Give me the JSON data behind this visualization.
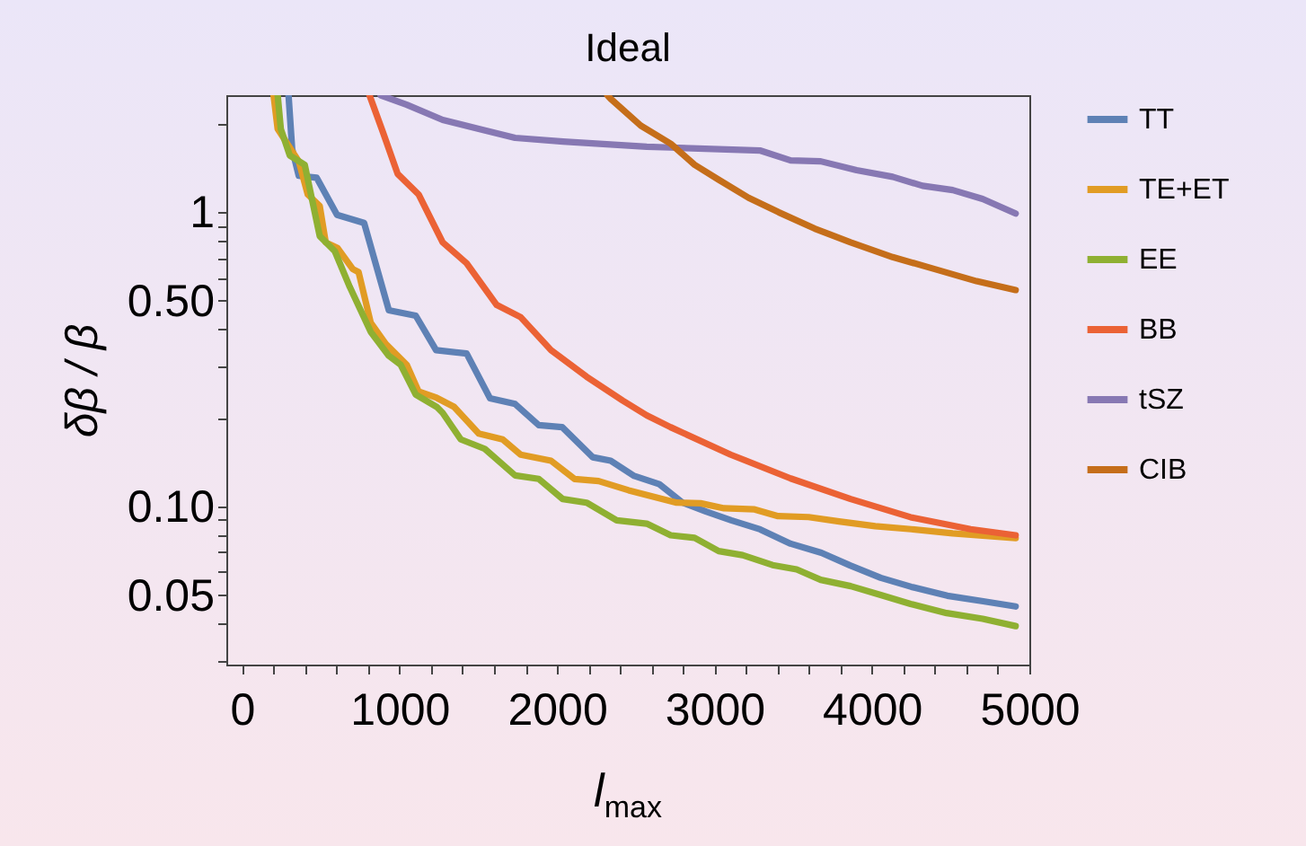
{
  "chart_data": {
    "type": "line",
    "title": "Ideal",
    "xlabel": "l$_{max}$",
    "ylabel": "δβ / β",
    "log": "y",
    "legend": "right",
    "line_style": "solid",
    "xlim": [
      -100,
      5000
    ],
    "ylim": [
      0.029,
      2.5
    ],
    "xticks": [
      0,
      {
        "value": 200,
        "label": null
      },
      {
        "value": 400,
        "label": null
      },
      {
        "value": 600,
        "label": null
      },
      {
        "value": 800,
        "label": null
      },
      1000,
      {
        "value": 1200,
        "label": null
      },
      {
        "value": 1400,
        "label": null
      },
      {
        "value": 1600,
        "label": null
      },
      {
        "value": 1800,
        "label": null
      },
      2000,
      {
        "value": 2200,
        "label": null
      },
      {
        "value": 2400,
        "label": null
      },
      {
        "value": 2600,
        "label": null
      },
      {
        "value": 2800,
        "label": null
      },
      3000,
      {
        "value": 3200,
        "label": null
      },
      {
        "value": 3400,
        "label": null
      },
      {
        "value": 3600,
        "label": null
      },
      {
        "value": 3800,
        "label": null
      },
      4000,
      {
        "value": 4200,
        "label": null
      },
      {
        "value": 4400,
        "label": null
      },
      {
        "value": 4600,
        "label": null
      },
      {
        "value": 4800,
        "label": null
      },
      5000
    ],
    "yticks": [
      {
        "value": 0.03,
        "label": null
      },
      {
        "value": 0.04,
        "label": null
      },
      0.05,
      {
        "value": 0.06,
        "label": null
      },
      {
        "value": 0.07,
        "label": null
      },
      {
        "value": 0.08,
        "label": null
      },
      {
        "value": 0.09,
        "label": null
      },
      {
        "value": 0.1,
        "label": "0.10"
      },
      {
        "value": 0.2,
        "label": null
      },
      {
        "value": 0.3,
        "label": null
      },
      {
        "value": 0.4,
        "label": null
      },
      {
        "value": 0.5,
        "label": "0.50"
      },
      {
        "value": 0.6,
        "label": null
      },
      {
        "value": 0.7,
        "label": null
      },
      {
        "value": 0.8,
        "label": null
      },
      {
        "value": 0.9,
        "label": null
      },
      1,
      {
        "value": 2,
        "label": null
      }
    ],
    "series": [
      {
        "name": "TT",
        "color": "#5e81b5",
        "x": [
          295,
          318,
          360,
          474,
          603,
          775,
          932,
          1103,
          1232,
          1426,
          1575,
          1734,
          1884,
          2033,
          2227,
          2341,
          2490,
          2650,
          2798,
          2947,
          3107,
          3290,
          3484,
          3679,
          3862,
          4056,
          4250,
          4479,
          4707,
          4913
        ],
        "values": [
          2.5,
          1.64,
          1.33,
          1.31,
          0.98,
          0.92,
          0.464,
          0.445,
          0.34,
          0.331,
          0.233,
          0.223,
          0.189,
          0.186,
          0.147,
          0.143,
          0.127,
          0.119,
          0.103,
          0.096,
          0.0897,
          0.0836,
          0.0747,
          0.0696,
          0.063,
          0.0572,
          0.0533,
          0.0497,
          0.0476,
          0.0457
        ]
      },
      {
        "name": "TE+ET",
        "color": "#e19c24",
        "x": [
          200,
          226,
          360,
          417,
          493,
          531,
          607,
          703,
          740,
          817,
          912,
          1046,
          1121,
          1236,
          1346,
          1503,
          1655,
          1769,
          1962,
          2112,
          2264,
          2455,
          2760,
          2912,
          3061,
          3255,
          3404,
          3598,
          3792,
          4021,
          4250,
          4513,
          4913
        ],
        "values": [
          2.5,
          1.92,
          1.49,
          1.15,
          1.05,
          0.79,
          0.755,
          0.641,
          0.626,
          0.421,
          0.357,
          0.303,
          0.246,
          0.234,
          0.218,
          0.177,
          0.169,
          0.15,
          0.143,
          0.124,
          0.122,
          0.1135,
          0.103,
          0.1025,
          0.0986,
          0.0977,
          0.0927,
          0.092,
          0.0889,
          0.0857,
          0.0837,
          0.081,
          0.078
        ]
      },
      {
        "name": "EE",
        "color": "#8fb032",
        "x": [
          226,
          246,
          303,
          398,
          493,
          589,
          684,
          817,
          932,
          1007,
          1103,
          1236,
          1274,
          1389,
          1541,
          1734,
          1884,
          2036,
          2188,
          2379,
          2570,
          2722,
          2874,
          3027,
          3179,
          3369,
          3522,
          3675,
          3865,
          4056,
          4246,
          4475,
          4703,
          4913
        ],
        "values": [
          2.5,
          1.92,
          1.56,
          1.45,
          0.83,
          0.737,
          0.557,
          0.392,
          0.325,
          0.303,
          0.24,
          0.218,
          0.208,
          0.169,
          0.157,
          0.1275,
          0.124,
          0.106,
          0.103,
          0.0897,
          0.0874,
          0.0798,
          0.0782,
          0.0705,
          0.0683,
          0.0632,
          0.0611,
          0.0563,
          0.0536,
          0.05,
          0.0466,
          0.0434,
          0.0415,
          0.0392
        ]
      },
      {
        "name": "BB",
        "color": "#eb6235",
        "x": [
          809,
          893,
          988,
          1121,
          1274,
          1426,
          1617,
          1769,
          1962,
          2188,
          2417,
          2570,
          2721,
          3103,
          3484,
          3865,
          4246,
          4627,
          4913
        ],
        "values": [
          2.5,
          1.88,
          1.35,
          1.15,
          0.79,
          0.671,
          0.484,
          0.44,
          0.34,
          0.276,
          0.229,
          0.204,
          0.186,
          0.15,
          0.1245,
          0.106,
          0.0919,
          0.0837,
          0.0798
        ]
      },
      {
        "name": "tSZ",
        "color": "#8778b3",
        "x": [
          880,
          1046,
          1274,
          1503,
          1734,
          2039,
          2570,
          2722,
          3293,
          3484,
          3675,
          3903,
          4132,
          4322,
          4513,
          4703,
          4913
        ],
        "values": [
          2.5,
          2.32,
          2.06,
          1.92,
          1.79,
          1.74,
          1.67,
          1.66,
          1.62,
          1.5,
          1.49,
          1.39,
          1.32,
          1.23,
          1.19,
          1.11,
          0.99
        ]
      },
      {
        "name": "CIB",
        "color": "#c56e1a",
        "x": [
          2320,
          2341,
          2532,
          2722,
          2874,
          3027,
          3217,
          3408,
          3637,
          3865,
          4132,
          4399,
          4665,
          4913
        ],
        "values": [
          2.5,
          2.43,
          1.97,
          1.71,
          1.45,
          1.29,
          1.12,
          1.0,
          0.88,
          0.79,
          0.704,
          0.641,
          0.583,
          0.544
        ]
      }
    ]
  }
}
